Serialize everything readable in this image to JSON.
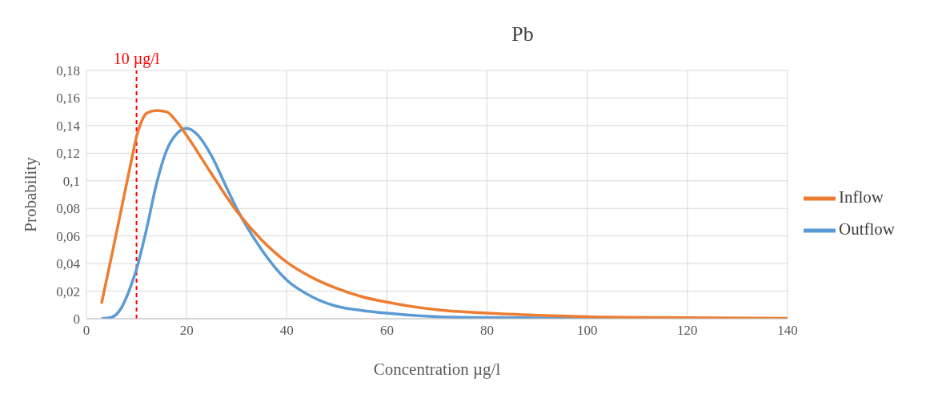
{
  "chart_data": {
    "type": "line",
    "title": "Pb",
    "xlabel": "Concentration µg/l",
    "ylabel": "Probability",
    "xlim": [
      0,
      140
    ],
    "xticks": [
      0,
      20,
      40,
      60,
      80,
      100,
      120,
      140
    ],
    "ylim": [
      0,
      0.18
    ],
    "yticks": [
      0,
      {
        "value": 0.02,
        "label": "0,02"
      },
      {
        "value": 0.04,
        "label": "0,04"
      },
      {
        "value": 0.06,
        "label": "0,06"
      },
      {
        "value": 0.08,
        "label": "0,08"
      },
      {
        "value": 0.1,
        "label": "0,1"
      },
      {
        "value": 0.12,
        "label": "0,12"
      },
      {
        "value": 0.14,
        "label": "0,14"
      },
      {
        "value": 0.16,
        "label": "0,16"
      },
      {
        "value": 0.18,
        "label": "0,18"
      }
    ],
    "grid": true,
    "legend": "right",
    "marker": "none",
    "line_style": "solid",
    "ref_lines": [
      {
        "axis": "x",
        "value": 10,
        "label": "10 µg/l",
        "color": "#ff0000",
        "line_style": "dashed"
      }
    ],
    "series": [
      {
        "name": "Outflow",
        "color": "#5b9bd5",
        "x": [
          3,
          5,
          7,
          9,
          10,
          12,
          14,
          16,
          18,
          20,
          22,
          25,
          28,
          30,
          35,
          40,
          45,
          50,
          55,
          60,
          70,
          80,
          100,
          140
        ],
        "values": [
          0,
          0.001,
          0.008,
          0.025,
          0.036,
          0.065,
          0.098,
          0.122,
          0.134,
          0.138,
          0.134,
          0.118,
          0.095,
          0.08,
          0.05,
          0.028,
          0.016,
          0.009,
          0.006,
          0.004,
          0.0015,
          0.0008,
          0.0003,
          0
        ]
      },
      {
        "name": "Inflow",
        "color": "#ed7d31",
        "x": [
          3,
          5,
          7,
          9,
          10,
          11,
          12,
          14,
          16,
          18,
          20,
          25,
          30,
          35,
          40,
          45,
          50,
          55,
          60,
          70,
          80,
          90,
          100,
          120,
          140
        ],
        "values": [
          0.011,
          0.045,
          0.08,
          0.115,
          0.132,
          0.143,
          0.149,
          0.151,
          0.15,
          0.143,
          0.133,
          0.105,
          0.078,
          0.057,
          0.041,
          0.03,
          0.022,
          0.016,
          0.012,
          0.0065,
          0.004,
          0.0025,
          0.0015,
          0.0007,
          0.0003
        ]
      }
    ]
  }
}
